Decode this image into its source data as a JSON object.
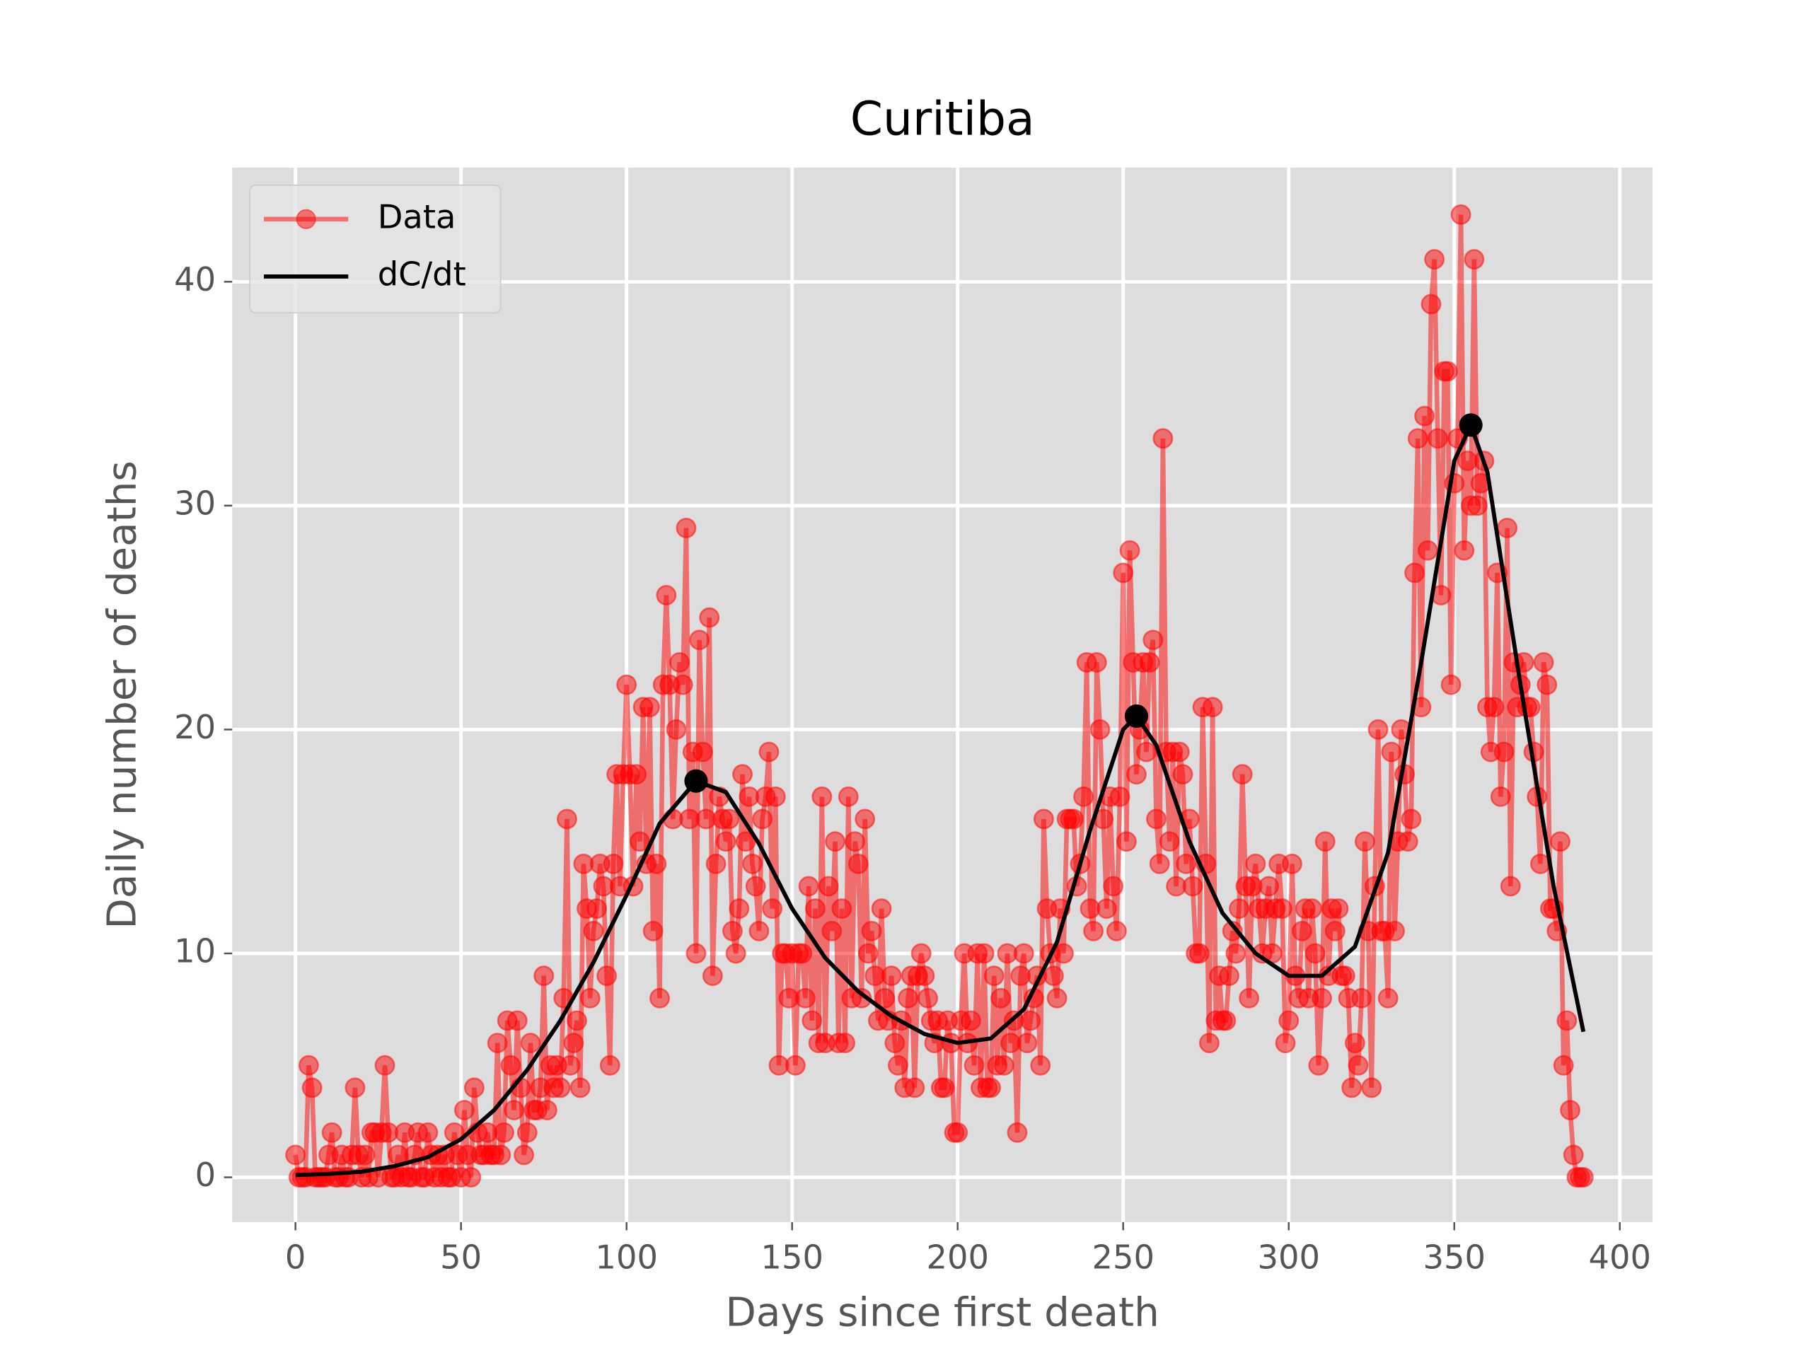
{
  "chart_data": {
    "type": "line",
    "title": "Curitiba",
    "x_label": "Days since first death",
    "y_label": "Daily number of deaths",
    "xlim": [
      -19.1,
      409.9
    ],
    "ylim": [
      -2,
      45.1
    ],
    "xticks": [
      0,
      50,
      100,
      150,
      200,
      250,
      300,
      350,
      400
    ],
    "yticks": [
      0,
      10,
      20,
      30,
      40
    ],
    "grid": true,
    "legend": "upper left",
    "series": [
      {
        "name": "Data",
        "color": "#ff0000",
        "marker": true,
        "x": [
          0,
          1,
          2,
          3,
          4,
          5,
          6,
          7,
          8,
          9,
          10,
          11,
          12,
          13,
          14,
          15,
          16,
          17,
          18,
          19,
          20,
          21,
          22,
          23,
          24,
          25,
          26,
          27,
          28,
          29,
          30,
          31,
          32,
          33,
          34,
          35,
          36,
          37,
          38,
          39,
          40,
          41,
          42,
          43,
          44,
          45,
          46,
          47,
          48,
          49,
          50,
          51,
          52,
          53,
          54,
          55,
          56,
          57,
          58,
          59,
          60,
          61,
          62,
          63,
          64,
          65,
          66,
          67,
          68,
          69,
          70,
          71,
          72,
          73,
          74,
          75,
          76,
          77,
          78,
          79,
          80,
          81,
          82,
          83,
          84,
          85,
          86,
          87,
          88,
          89,
          90,
          91,
          92,
          93,
          94,
          95,
          96,
          97,
          98,
          99,
          100,
          101,
          102,
          103,
          104,
          105,
          106,
          107,
          108,
          109,
          110,
          111,
          112,
          113,
          114,
          115,
          116,
          117,
          118,
          119,
          120,
          121,
          122,
          123,
          124,
          125,
          126,
          127,
          128,
          129,
          130,
          131,
          132,
          133,
          134,
          135,
          136,
          137,
          138,
          139,
          140,
          141,
          142,
          143,
          144,
          145,
          146,
          147,
          148,
          149,
          150,
          151,
          152,
          153,
          154,
          155,
          156,
          157,
          158,
          159,
          160,
          161,
          162,
          163,
          164,
          165,
          166,
          167,
          168,
          169,
          170,
          171,
          172,
          173,
          174,
          175,
          176,
          177,
          178,
          179,
          180,
          181,
          182,
          183,
          184,
          185,
          186,
          187,
          188,
          189,
          190,
          191,
          192,
          193,
          194,
          195,
          196,
          197,
          198,
          199,
          200,
          201,
          202,
          203,
          204,
          205,
          206,
          207,
          208,
          209,
          210,
          211,
          212,
          213,
          214,
          215,
          216,
          217,
          218,
          219,
          220,
          221,
          222,
          223,
          224,
          225,
          226,
          227,
          228,
          229,
          230,
          231,
          232,
          233,
          234,
          235,
          236,
          237,
          238,
          239,
          240,
          241,
          242,
          243,
          244,
          245,
          246,
          247,
          248,
          249,
          250,
          251,
          252,
          253,
          254,
          255,
          256,
          257,
          258,
          259,
          260,
          261,
          262,
          263,
          264,
          265,
          266,
          267,
          268,
          269,
          270,
          271,
          272,
          273,
          274,
          275,
          276,
          277,
          278,
          279,
          280,
          281,
          282,
          283,
          284,
          285,
          286,
          287,
          288,
          289,
          290,
          291,
          292,
          293,
          294,
          295,
          296,
          297,
          298,
          299,
          300,
          301,
          302,
          303,
          304,
          305,
          306,
          307,
          308,
          309,
          310,
          311,
          312,
          313,
          314,
          315,
          316,
          317,
          318,
          319,
          320,
          321,
          322,
          323,
          324,
          325,
          326,
          327,
          328,
          329,
          330,
          331,
          332,
          333,
          334,
          335,
          336,
          337,
          338,
          339,
          340,
          341,
          342,
          343,
          344,
          345,
          346,
          347,
          348,
          349,
          350,
          351,
          352,
          353,
          354,
          355,
          356,
          357,
          358,
          359,
          360,
          361,
          362,
          363,
          364,
          365,
          366,
          367,
          368,
          369,
          370,
          371,
          372,
          373,
          374,
          375,
          376,
          377,
          378,
          379,
          380,
          381,
          382,
          383,
          384,
          385,
          386,
          387,
          388,
          389
        ],
        "values": [
          1,
          0,
          0,
          0,
          5,
          4,
          0,
          0,
          0,
          0,
          1,
          2,
          0,
          0,
          1,
          0,
          0,
          1,
          4,
          1,
          0,
          1,
          0,
          2,
          2,
          0,
          2,
          5,
          2,
          0,
          0,
          1,
          0,
          2,
          0,
          0,
          1,
          2,
          0,
          0,
          2,
          1,
          0,
          1,
          0,
          1,
          0,
          0,
          2,
          1,
          0,
          3,
          1,
          0,
          4,
          2,
          1,
          1,
          2,
          1,
          1,
          6,
          1,
          2,
          7,
          5,
          3,
          7,
          4,
          1,
          2,
          6,
          3,
          3,
          4,
          9,
          3,
          5,
          4,
          5,
          4,
          8,
          16,
          5,
          6,
          7,
          4,
          14,
          12,
          8,
          11,
          12,
          14,
          13,
          9,
          5,
          14,
          18,
          13,
          18,
          22,
          18,
          13,
          18,
          15,
          21,
          14,
          21,
          11,
          14,
          8,
          22,
          26,
          22,
          16,
          20,
          23,
          22,
          29,
          16,
          19,
          10,
          24,
          19,
          16,
          25,
          9,
          14,
          17,
          16,
          15,
          16,
          11,
          10,
          12,
          18,
          15,
          17,
          14,
          13,
          11,
          16,
          17,
          19,
          12,
          17,
          5,
          10,
          10,
          8,
          10,
          5,
          10,
          10,
          8,
          13,
          7,
          12,
          6,
          17,
          6,
          13,
          11,
          15,
          6,
          12,
          6,
          17,
          8,
          15,
          14,
          8,
          16,
          10,
          11,
          9,
          7,
          12,
          8,
          7,
          9,
          6,
          5,
          7,
          4,
          8,
          9,
          4,
          9,
          10,
          9,
          8,
          7,
          6,
          7,
          4,
          4,
          7,
          6,
          2,
          2,
          7,
          10,
          6,
          7,
          5,
          10,
          4,
          10,
          4,
          4,
          9,
          5,
          8,
          5,
          10,
          6,
          7,
          2,
          9,
          10,
          6,
          7,
          8,
          9,
          5,
          16,
          12,
          10,
          9,
          8,
          12,
          10,
          16,
          16,
          16,
          13,
          14,
          17,
          23,
          12,
          11,
          23,
          20,
          16,
          12,
          17,
          13,
          11,
          17,
          27,
          15,
          28,
          23,
          18,
          20,
          23,
          19,
          23,
          24,
          16,
          14,
          33,
          19,
          15,
          19,
          13,
          19,
          18,
          14,
          16,
          13,
          10,
          10,
          21,
          14,
          6,
          21,
          7,
          9,
          7,
          7,
          9,
          11,
          10,
          12,
          18,
          13,
          8,
          13,
          14,
          12,
          10,
          12,
          13,
          10,
          12,
          14,
          12,
          6,
          7,
          14,
          9,
          8,
          11,
          12,
          8,
          12,
          10,
          5,
          8,
          15,
          9,
          12,
          11,
          12,
          9,
          9,
          8,
          4,
          6,
          5,
          8,
          15,
          11,
          4,
          13,
          20,
          11,
          11,
          8,
          19,
          11,
          15,
          20,
          18,
          15,
          16,
          27,
          33,
          21,
          34,
          28,
          39,
          41,
          33,
          26,
          36,
          36,
          22,
          31,
          33,
          43,
          28,
          32,
          30,
          41,
          30,
          31,
          32,
          21,
          19,
          21,
          27,
          17,
          19,
          29,
          13,
          23,
          21,
          22,
          23,
          21,
          21,
          19,
          17,
          14,
          23,
          22,
          12,
          12,
          11,
          15,
          5,
          7,
          3,
          1,
          0,
          0,
          0
        ]
      },
      {
        "name": "dC/dt",
        "color": "#000000",
        "marker": false,
        "x": [
          0,
          10,
          20,
          30,
          40,
          50,
          60,
          70,
          80,
          90,
          100,
          110,
          121,
          130,
          140,
          150,
          160,
          170,
          180,
          190,
          200,
          210,
          220,
          230,
          240,
          250,
          254,
          260,
          270,
          280,
          290,
          300,
          310,
          320,
          330,
          340,
          350,
          355,
          360,
          370,
          380,
          389
        ],
        "values": [
          0.1,
          0.15,
          0.25,
          0.5,
          0.9,
          1.7,
          3.0,
          4.8,
          7.0,
          9.6,
          12.6,
          15.8,
          17.7,
          17.2,
          14.9,
          12.0,
          9.8,
          8.3,
          7.2,
          6.4,
          6.0,
          6.2,
          7.5,
          10.5,
          15.5,
          20.0,
          20.6,
          19.3,
          15.0,
          11.8,
          10.0,
          9.0,
          9.0,
          10.3,
          14.5,
          23.0,
          32.0,
          33.6,
          31.5,
          22.0,
          13.0,
          6.5
        ]
      }
    ],
    "peaks": {
      "color": "#000000",
      "x": [
        121,
        254,
        355
      ],
      "values": [
        17.7,
        20.6,
        33.6
      ]
    }
  }
}
